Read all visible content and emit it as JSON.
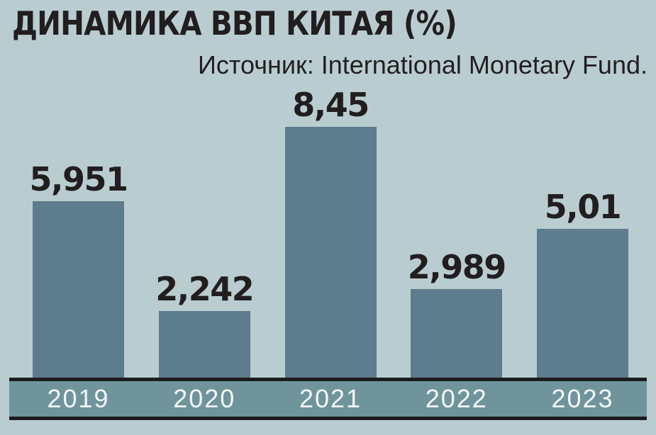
{
  "title": "ДИНАМИКА ВВП КИТАЯ (%)",
  "source": "Источник: International Monetary Fund.",
  "colors": {
    "background": "#b9cdd0",
    "bar": "#5d7c8e",
    "axis_band": "#6f949c",
    "axis_line": "#1c1c1c",
    "text": "#221e1f",
    "year_text": "#f3f6f5"
  },
  "chart_data": {
    "type": "bar",
    "title": "ДИНАМИКА ВВП КИТАЯ (%)",
    "source": "Источник: International Monetary Fund.",
    "categories": [
      "2019",
      "2020",
      "2021",
      "2022",
      "2023"
    ],
    "values": [
      5.951,
      2.242,
      8.45,
      2.989,
      5.01
    ],
    "value_labels": [
      "5,951",
      "2,242",
      "8,45",
      "2,989",
      "5,01"
    ],
    "decimal_separator": ",",
    "xlabel": "",
    "ylabel": "",
    "ylim": [
      0,
      9
    ],
    "grid": false,
    "legend": "none",
    "bar_color": "#5d7c8e",
    "value_label_position": "above-bar",
    "x_axis_style": "filled-band-with-black-rules"
  }
}
